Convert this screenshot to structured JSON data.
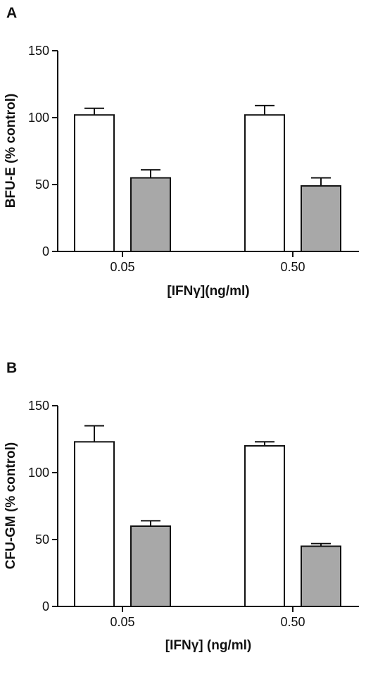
{
  "chart_data": [
    {
      "panel": "A",
      "type": "bar",
      "categories": [
        "0.05",
        "0.50"
      ],
      "series": [
        {
          "values": [
            102,
            102
          ],
          "errors": [
            5,
            7
          ],
          "color": "#ffffff"
        },
        {
          "values": [
            55,
            49
          ],
          "errors": [
            6,
            6
          ],
          "color": "#a8a8a8"
        }
      ],
      "xlabel": "[IFNγ](ng/ml)",
      "ylabel": "BFU-E (% control)",
      "ylim": [
        0,
        150
      ],
      "yticks": [
        0,
        50,
        100,
        150
      ],
      "grid": false
    },
    {
      "panel": "B",
      "type": "bar",
      "categories": [
        "0.05",
        "0.50"
      ],
      "series": [
        {
          "values": [
            123,
            120
          ],
          "errors": [
            12,
            3
          ],
          "color": "#ffffff"
        },
        {
          "values": [
            60,
            45
          ],
          "errors": [
            4,
            2
          ],
          "color": "#a8a8a8"
        }
      ],
      "xlabel": "[IFNγ] (ng/ml)",
      "ylabel": "CFU-GM (% control)",
      "ylim": [
        0,
        150
      ],
      "yticks": [
        0,
        50,
        100,
        150
      ],
      "grid": false
    }
  ]
}
